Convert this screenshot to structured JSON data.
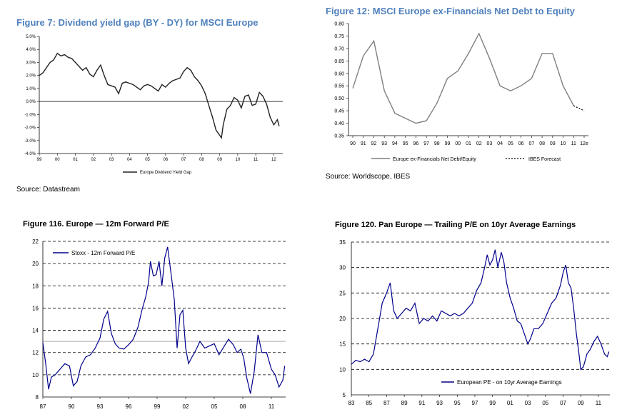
{
  "charts": [
    {
      "id": "fig7",
      "title": "Figure 7: Dividend yield gap (BY - DY) for MSCI Europe",
      "source": "Source: Datastream",
      "legend": [
        "Europe Dividend Yield Gap"
      ],
      "chart_type": "line"
    },
    {
      "id": "fig12",
      "title": "Figure 12: MSCI Europe ex-Financials Net Debt to Equity",
      "source": "Source: Worldscope, IBES",
      "legend": [
        "Europe ex-Financials Net Debt/Equity",
        "IBES Forecast"
      ],
      "chart_type": "line"
    },
    {
      "id": "fig116",
      "title": "Figure 116. Europe — 12m Forward P/E",
      "source": "",
      "legend": [
        "Stoxx - 12m Forward P/E"
      ],
      "chart_type": "line"
    },
    {
      "id": "fig120",
      "title": "Figure 120. Pan Europe — Trailing P/E on 10yr Average Earnings",
      "source": "",
      "legend": [
        "European PE - on 10yr Average Earnings"
      ],
      "chart_type": "line"
    }
  ],
  "chart_data": [
    {
      "type": "line",
      "title": "Figure 7: Dividend yield gap (BY - DY) for MSCI Europe",
      "ylim": [
        -4.0,
        5.0
      ],
      "y_ticks": [
        "-4.0%",
        "-3.0%",
        "-2.0%",
        "-1.0%",
        "0.0%",
        "1.0%",
        "2.0%",
        "3.0%",
        "4.0%",
        "5.0%"
      ],
      "y_tick_values": [
        -4,
        -3,
        -2,
        -1,
        0,
        1,
        2,
        3,
        4,
        5
      ],
      "x_ticks": [
        "99",
        "00",
        "01",
        "02",
        "03",
        "04",
        "05",
        "06",
        "07",
        "08",
        "09",
        "10",
        "11",
        "12"
      ],
      "x_tick_values": [
        1999,
        2000,
        2001,
        2002,
        2003,
        2004,
        2005,
        2006,
        2007,
        2008,
        2009,
        2010,
        2011,
        2012
      ],
      "xlim": [
        1999,
        2012.5
      ],
      "series": [
        {
          "name": "Europe Dividend Yield Gap",
          "x": [
            1999.0,
            1999.2,
            1999.4,
            1999.6,
            1999.8,
            2000.0,
            2000.2,
            2000.4,
            2000.6,
            2000.8,
            2001.0,
            2001.2,
            2001.4,
            2001.6,
            2001.8,
            2002.0,
            2002.2,
            2002.4,
            2002.6,
            2002.8,
            2003.0,
            2003.2,
            2003.4,
            2003.6,
            2003.8,
            2004.0,
            2004.2,
            2004.4,
            2004.6,
            2004.8,
            2005.0,
            2005.2,
            2005.4,
            2005.6,
            2005.8,
            2006.0,
            2006.2,
            2006.4,
            2006.6,
            2006.8,
            2007.0,
            2007.2,
            2007.4,
            2007.6,
            2007.8,
            2008.0,
            2008.2,
            2008.4,
            2008.6,
            2008.8,
            2009.0,
            2009.1,
            2009.2,
            2009.4,
            2009.6,
            2009.8,
            2010.0,
            2010.2,
            2010.4,
            2010.6,
            2010.8,
            2011.0,
            2011.2,
            2011.4,
            2011.6,
            2011.8,
            2012.0,
            2012.2,
            2012.3
          ],
          "y": [
            2.0,
            2.2,
            2.6,
            3.0,
            3.2,
            3.7,
            3.5,
            3.6,
            3.4,
            3.3,
            3.0,
            2.7,
            2.4,
            2.6,
            2.1,
            1.9,
            2.4,
            2.8,
            2.0,
            1.3,
            1.2,
            1.1,
            0.6,
            1.4,
            1.5,
            1.4,
            1.3,
            1.1,
            0.9,
            1.2,
            1.3,
            1.2,
            1.0,
            0.8,
            1.3,
            1.1,
            1.4,
            1.6,
            1.7,
            1.8,
            2.3,
            2.6,
            2.4,
            1.9,
            1.6,
            1.2,
            0.6,
            -0.3,
            -1.2,
            -2.2,
            -2.6,
            -2.8,
            -1.8,
            -0.6,
            -0.3,
            0.3,
            0.1,
            -0.5,
            0.4,
            0.5,
            -0.3,
            -0.2,
            0.7,
            0.4,
            -0.2,
            -1.2,
            -1.8,
            -1.4,
            -1.9
          ]
        }
      ]
    },
    {
      "type": "line",
      "title": "Figure 12: MSCI Europe ex-Financials Net Debt to Equity",
      "ylim": [
        0.35,
        0.8
      ],
      "y_ticks": [
        "0.35",
        "0.40",
        "0.45",
        "0.50",
        "0.55",
        "0.60",
        "0.65",
        "0.70",
        "0.75",
        "0.80"
      ],
      "y_tick_values": [
        0.35,
        0.4,
        0.45,
        0.5,
        0.55,
        0.6,
        0.65,
        0.7,
        0.75,
        0.8
      ],
      "categories": [
        "90",
        "91",
        "92",
        "93",
        "94",
        "95",
        "96",
        "97",
        "98",
        "99",
        "00",
        "01",
        "02",
        "03",
        "04",
        "05",
        "06",
        "07",
        "08",
        "09",
        "10",
        "11",
        "12e"
      ],
      "series": [
        {
          "name": "Europe ex-Financials Net Debt/Equity",
          "values": [
            0.54,
            0.67,
            0.73,
            0.53,
            0.44,
            0.42,
            0.4,
            0.41,
            0.48,
            0.58,
            0.61,
            0.68,
            0.76,
            0.66,
            0.55,
            0.53,
            0.55,
            0.58,
            0.68,
            0.68,
            0.55,
            0.47,
            null
          ]
        },
        {
          "name": "IBES Forecast",
          "values": [
            null,
            null,
            null,
            null,
            null,
            null,
            null,
            null,
            null,
            null,
            null,
            null,
            null,
            null,
            null,
            null,
            null,
            null,
            null,
            null,
            null,
            0.47,
            0.45
          ]
        }
      ]
    },
    {
      "type": "line",
      "title": "Figure 116. Europe — 12m Forward P/E",
      "ylim": [
        8,
        22
      ],
      "y_ticks": [
        "8",
        "10",
        "12",
        "14",
        "16",
        "18",
        "20",
        "22"
      ],
      "y_tick_values": [
        8,
        10,
        12,
        14,
        16,
        18,
        20,
        22
      ],
      "x_ticks": [
        "87",
        "90",
        "93",
        "96",
        "99",
        "02",
        "05",
        "08",
        "11"
      ],
      "x_tick_values": [
        1987,
        1990,
        1993,
        1996,
        1999,
        2002,
        2005,
        2008,
        2011
      ],
      "xlim": [
        1987,
        2012.5
      ],
      "reference_line": 13.0,
      "series": [
        {
          "name": "Stoxx - 12m Forward P/E",
          "x": [
            1987.0,
            1987.3,
            1987.6,
            1987.9,
            1988.3,
            1988.8,
            1989.3,
            1989.8,
            1990.2,
            1990.6,
            1991.0,
            1991.5,
            1992.0,
            1992.5,
            1993.0,
            1993.4,
            1993.8,
            1994.2,
            1994.6,
            1995.0,
            1995.5,
            1996.0,
            1996.5,
            1997.0,
            1997.4,
            1997.8,
            1998.1,
            1998.3,
            1998.6,
            1998.9,
            1999.2,
            1999.5,
            1999.8,
            2000.1,
            2000.4,
            2000.8,
            2001.1,
            2001.4,
            2001.7,
            2002.0,
            2002.3,
            2002.6,
            2003.0,
            2003.5,
            2004.0,
            2004.5,
            2005.0,
            2005.5,
            2006.0,
            2006.5,
            2007.0,
            2007.4,
            2007.8,
            2008.1,
            2008.4,
            2008.8,
            2009.2,
            2009.6,
            2010.0,
            2010.5,
            2011.0,
            2011.4,
            2011.8,
            2012.2,
            2012.4
          ],
          "y": [
            12.9,
            11.0,
            8.7,
            9.8,
            10.0,
            10.5,
            11.0,
            10.8,
            9.0,
            9.4,
            10.8,
            11.6,
            11.8,
            12.4,
            13.3,
            15.0,
            15.7,
            13.7,
            12.8,
            12.4,
            12.3,
            12.7,
            13.2,
            14.3,
            15.8,
            17.0,
            18.3,
            20.2,
            18.9,
            19.0,
            20.2,
            18.0,
            20.5,
            21.5,
            19.5,
            16.8,
            12.4,
            15.4,
            15.8,
            12.4,
            11.0,
            11.5,
            12.1,
            13.0,
            12.4,
            12.6,
            12.8,
            11.8,
            12.5,
            13.2,
            12.7,
            12.0,
            12.3,
            11.5,
            9.8,
            8.3,
            10.3,
            13.6,
            12.0,
            12.0,
            10.5,
            10.0,
            8.9,
            9.5,
            10.8
          ]
        }
      ]
    },
    {
      "type": "line",
      "title": "Figure 120. Pan Europe — Trailing P/E on 10yr Average Earnings",
      "ylim": [
        5,
        35
      ],
      "y_ticks": [
        "5",
        "10",
        "15",
        "20",
        "25",
        "30",
        "35"
      ],
      "y_tick_values": [
        5,
        10,
        15,
        20,
        25,
        30,
        35
      ],
      "x_ticks": [
        "83",
        "85",
        "87",
        "89",
        "91",
        "93",
        "95",
        "97",
        "99",
        "01",
        "03",
        "05",
        "07",
        "09",
        "11"
      ],
      "x_tick_values": [
        1983,
        1985,
        1987,
        1989,
        1991,
        1993,
        1995,
        1997,
        1999,
        2001,
        2003,
        2005,
        2007,
        2009,
        2011
      ],
      "xlim": [
        1983,
        2012.3
      ],
      "series": [
        {
          "name": "European PE - on 10yr Average Earnings",
          "x": [
            1983.0,
            1983.5,
            1984.0,
            1984.5,
            1985.0,
            1985.5,
            1986.0,
            1986.5,
            1987.0,
            1987.4,
            1987.8,
            1988.2,
            1988.7,
            1989.2,
            1989.7,
            1990.2,
            1990.7,
            1991.2,
            1991.7,
            1992.2,
            1992.7,
            1993.2,
            1993.7,
            1994.2,
            1994.7,
            1995.2,
            1995.7,
            1996.2,
            1996.7,
            1997.2,
            1997.7,
            1998.1,
            1998.4,
            1998.7,
            1999.0,
            1999.3,
            1999.6,
            2000.0,
            2000.3,
            2000.6,
            2001.0,
            2001.4,
            2001.8,
            2002.2,
            2002.6,
            2003.0,
            2003.3,
            2003.7,
            2004.2,
            2004.7,
            2005.2,
            2005.7,
            2006.2,
            2006.7,
            2007.0,
            2007.3,
            2007.6,
            2007.9,
            2008.2,
            2008.5,
            2008.8,
            2009.0,
            2009.3,
            2009.7,
            2010.1,
            2010.5,
            2010.9,
            2011.3,
            2011.7,
            2012.0,
            2012.2
          ],
          "y": [
            11.0,
            11.8,
            11.5,
            12.0,
            11.5,
            13.0,
            18.0,
            23.0,
            25.0,
            27.0,
            21.5,
            20.0,
            21.0,
            22.0,
            21.5,
            23.0,
            19.0,
            20.0,
            19.5,
            20.5,
            19.5,
            21.5,
            21.0,
            20.5,
            21.0,
            20.5,
            21.0,
            22.0,
            23.0,
            25.5,
            27.0,
            30.0,
            32.5,
            30.5,
            31.5,
            33.5,
            30.0,
            33.0,
            31.0,
            27.0,
            24.0,
            22.0,
            19.5,
            19.0,
            17.0,
            15.0,
            16.0,
            18.0,
            18.0,
            19.0,
            21.0,
            23.0,
            24.0,
            26.5,
            29.0,
            30.5,
            27.0,
            26.0,
            22.0,
            17.0,
            13.0,
            10.0,
            10.5,
            13.0,
            14.0,
            15.5,
            16.5,
            15.0,
            13.0,
            12.5,
            13.5
          ]
        }
      ]
    }
  ]
}
